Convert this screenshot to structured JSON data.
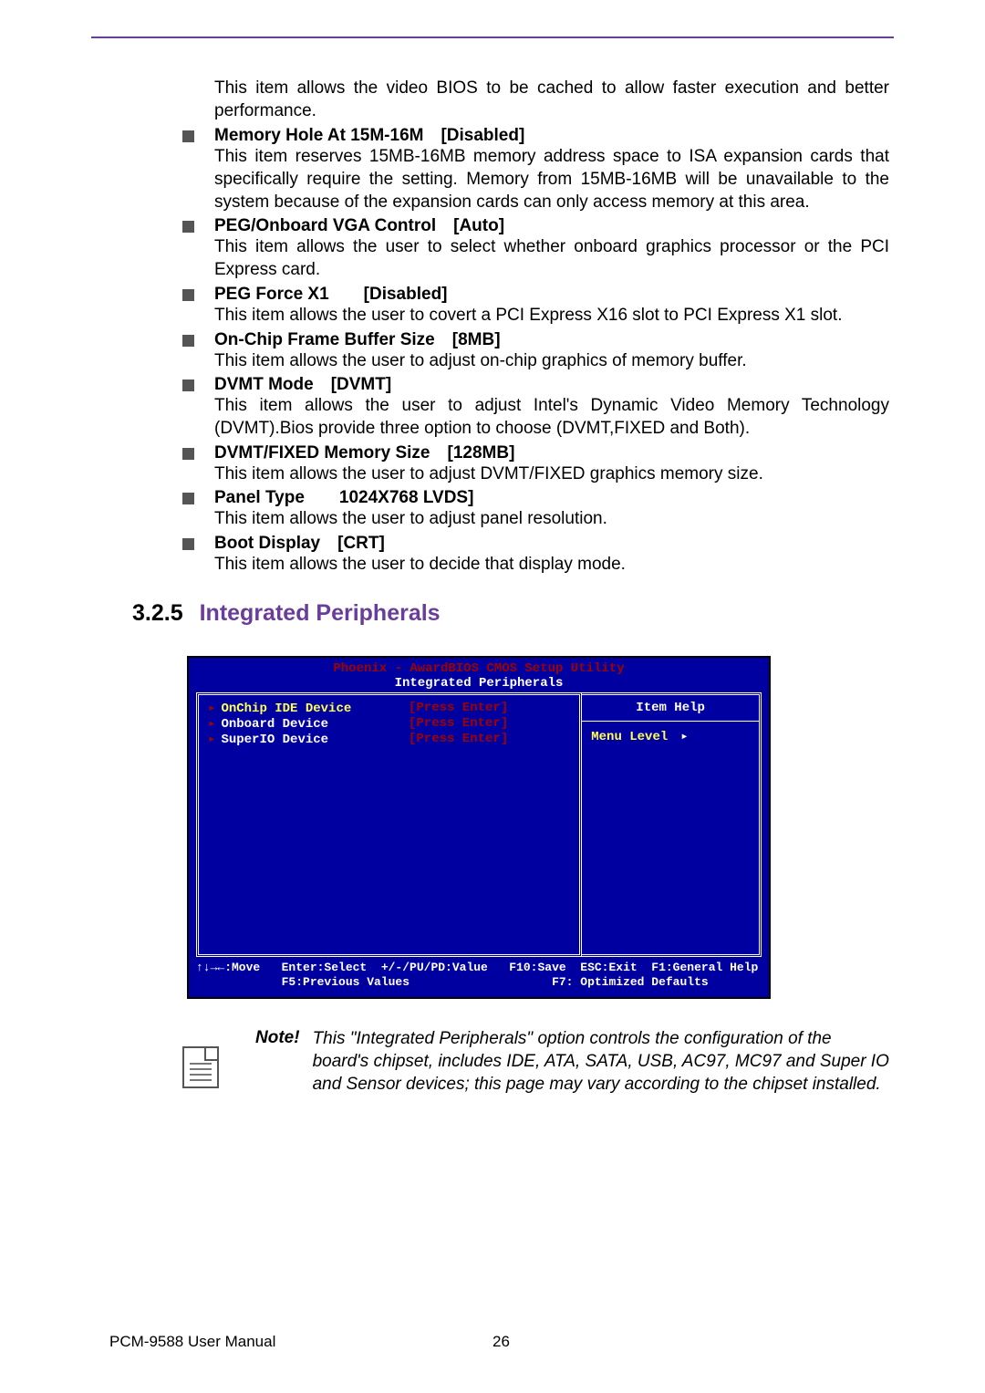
{
  "top_rule_color": "#6a3d9a",
  "intro": "This item allows the video BIOS to be cached to allow faster execution and better performance.",
  "items": [
    {
      "title": "Memory Hole At 15M-16M [Disabled]",
      "desc": "This item reserves 15MB-16MB memory address space to ISA expansion cards that specifically require the setting. Memory from 15MB-16MB will be unavailable to the system because of the expansion cards can only access memory at this area."
    },
    {
      "title": "PEG/Onboard VGA Control [Auto]",
      "desc": "This item allows the user to select whether onboard graphics processor or the PCI Express card."
    },
    {
      "title": "PEG Force X1  [Disabled]",
      "desc": "This item allows the user to covert a PCI Express X16 slot to PCI Express X1 slot."
    },
    {
      "title": "On-Chip Frame Buffer Size [8MB]",
      "desc": "This item allows the user to adjust on-chip graphics of memory buffer."
    },
    {
      "title": "DVMT Mode [DVMT]",
      "desc": "This item allows the user to adjust Intel's Dynamic Video Memory Technology (DVMT).Bios provide three option to choose (DVMT,FIXED and Both)."
    },
    {
      "title": "DVMT/FIXED Memory Size [128MB]",
      "desc": "This item allows the user to adjust DVMT/FIXED graphics memory size."
    },
    {
      "title": "Panel Type  1024X768 LVDS]",
      "desc": "This item allows the user to adjust panel resolution."
    },
    {
      "title": "Boot Display [CRT]",
      "desc": "This item allows the user to decide that display mode."
    }
  ],
  "section": {
    "num": "3.2.5",
    "title": "Integrated Peripherals"
  },
  "bios": {
    "bg": "#0000a0",
    "title1": "Phoenix - AwardBIOS CMOS Setup Utility",
    "title2": "Integrated Peripherals",
    "hdr_color": "#a00000",
    "rows": [
      {
        "label": "OnChip IDE Device",
        "value": "[Press Enter]",
        "hl": true
      },
      {
        "label": "Onboard Device",
        "value": "[Press Enter]",
        "hl": false
      },
      {
        "label": "SuperIO Device",
        "value": "[Press Enter]",
        "hl": false
      }
    ],
    "help_title": "Item Help",
    "menu_level": "Menu Level",
    "foot_l1": "↑↓→←:Move   Enter:Select  +/-/PU/PD:Value   F10:Save  ESC:Exit  F1:General Help",
    "foot_l2": "            F5:Previous Values                    F7: Optimized Defaults"
  },
  "note": {
    "label": "Note!",
    "text": "This \"Integrated Peripherals\" option controls the configuration of the board's chipset, includes IDE, ATA, SATA, USB, AC97, MC97 and Super IO and Sensor devices; this page may vary according to the chipset installed."
  },
  "footer": {
    "manual": "PCM-9588 User Manual",
    "page": "26"
  }
}
